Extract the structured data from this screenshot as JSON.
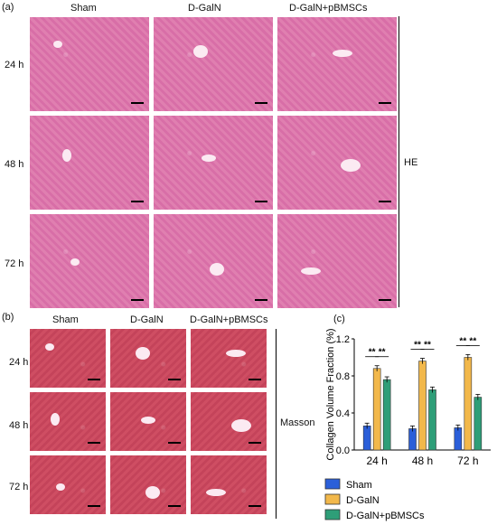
{
  "panel_a": {
    "letter": "(a)",
    "columns": [
      "Sham",
      "D-GalN",
      "D-GalN+pBMSCs"
    ],
    "rows": [
      "24 h",
      "48 h",
      "72 h"
    ],
    "stain": "HE"
  },
  "panel_b": {
    "letter": "(b)",
    "columns": [
      "Sham",
      "D-GalN",
      "D-GalN+pBMSCs"
    ],
    "rows": [
      "24 h",
      "48 h",
      "72 h"
    ],
    "stain": "Masson"
  },
  "panel_c": {
    "letter": "(c)"
  },
  "colors": {
    "sham": "#2b5fd9",
    "dgaln": "#f2b84b",
    "pbmscs": "#2e9e78"
  },
  "chart_data": {
    "type": "bar",
    "title": "",
    "xlabel": "",
    "ylabel": "Collagen Volume Fraction (%)",
    "categories": [
      "24 h",
      "48 h",
      "72 h"
    ],
    "yticks": [
      "0.0",
      "0.4",
      "0.8",
      "1.2"
    ],
    "ylim": [
      0,
      1.2
    ],
    "series": [
      {
        "name": "Sham",
        "color": "#2b5fd9",
        "values": [
          0.26,
          0.23,
          0.24
        ],
        "errors": [
          0.03,
          0.03,
          0.03
        ]
      },
      {
        "name": "D-GalN",
        "color": "#f2b84b",
        "values": [
          0.88,
          0.96,
          1.0
        ],
        "errors": [
          0.03,
          0.03,
          0.03
        ]
      },
      {
        "name": "D-GalN+pBMSCs",
        "color": "#2e9e78",
        "values": [
          0.76,
          0.65,
          0.57
        ],
        "errors": [
          0.03,
          0.03,
          0.03
        ]
      }
    ],
    "significance": "**"
  }
}
